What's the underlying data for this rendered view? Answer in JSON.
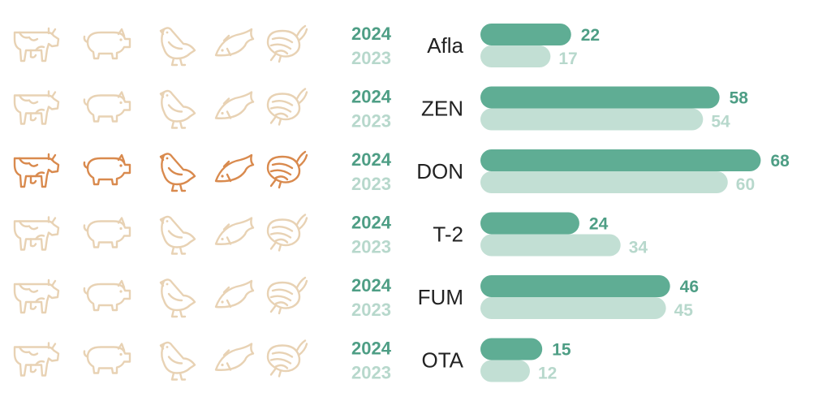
{
  "colors": {
    "bar_2024": "#5fad94",
    "bar_2023": "#c2dfd4",
    "year_2024": "#4e9e85",
    "year_2023": "#b7d8cc",
    "icon_muted": "#e8d2b4",
    "icon_highlight": "#d98a4e"
  },
  "icons": [
    "cow-icon",
    "pig-icon",
    "chicken-icon",
    "fish-icon",
    "shrimp-icon"
  ],
  "highlight_category": "DON",
  "chart_data": {
    "type": "bar",
    "orientation": "horizontal",
    "categories": [
      "Afla",
      "ZEN",
      "DON",
      "T-2",
      "FUM",
      "OTA"
    ],
    "series": [
      {
        "name": "2024",
        "values": [
          22,
          58,
          68,
          24,
          46,
          15
        ]
      },
      {
        "name": "2023",
        "values": [
          17,
          54,
          60,
          34,
          45,
          12
        ]
      }
    ],
    "xlim": [
      0,
      70
    ],
    "grid": false,
    "legend": "none"
  }
}
